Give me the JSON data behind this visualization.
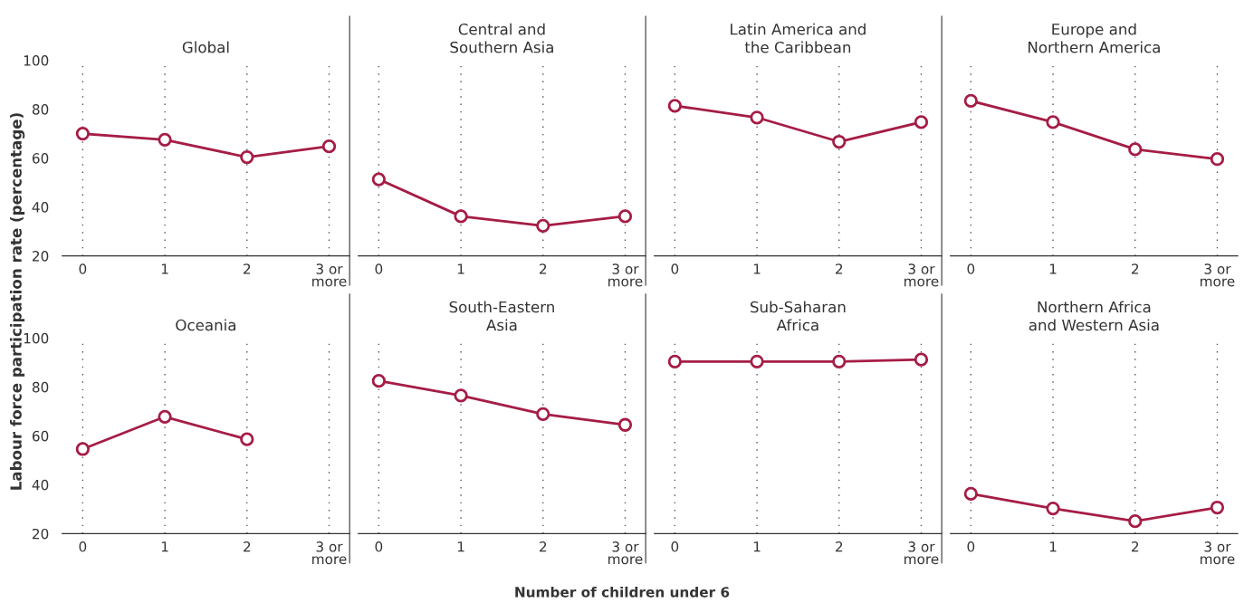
{
  "chart_data": [
    {
      "type": "line",
      "title": "Global",
      "ylabel": "Labour force participation rate (percentage)",
      "categories": [
        "0",
        "1",
        "2",
        "3 or\nmore"
      ],
      "series": [
        {
          "color": "#a51d45",
          "values": [
            70,
            67.5,
            60.4,
            64.8
          ]
        }
      ],
      "ylim": [
        20,
        100
      ],
      "yticks": [
        20,
        40,
        60,
        80,
        100
      ],
      "grid": "x",
      "marker": "circle"
    },
    {
      "type": "line",
      "title": "Central and\nSouthern Asia",
      "categories": [
        "0",
        "1",
        "2",
        "3 or\nmore"
      ],
      "series": [
        {
          "color": "#a51d45",
          "values": [
            51.3,
            36.2,
            32.3,
            36.2
          ]
        }
      ],
      "ylim": [
        20,
        100
      ],
      "yticks": [
        20,
        40,
        60,
        80,
        100
      ],
      "tick_labels": "x",
      "grid": "x",
      "marker": "circle"
    },
    {
      "type": "line",
      "title": "Latin America and\nthe Caribbean",
      "categories": [
        "0",
        "1",
        "2",
        "3 or\nmore"
      ],
      "series": [
        {
          "color": "#a51d45",
          "values": [
            81.4,
            76.6,
            66.7,
            74.7
          ]
        }
      ],
      "ylim": [
        20,
        100
      ],
      "yticks": [
        20,
        40,
        60,
        80,
        100
      ],
      "tick_labels": "x",
      "grid": "x",
      "marker": "circle"
    },
    {
      "type": "line",
      "title": "Europe and\nNorthern America",
      "categories": [
        "0",
        "1",
        "2",
        "3 or\nmore"
      ],
      "series": [
        {
          "color": "#a51d45",
          "values": [
            83.4,
            74.7,
            63.6,
            59.6
          ]
        }
      ],
      "ylim": [
        20,
        100
      ],
      "yticks": [
        20,
        40,
        60,
        80,
        100
      ],
      "tick_labels": "x",
      "grid": "x",
      "marker": "circle"
    },
    {
      "type": "line",
      "title": "Oceania",
      "categories": [
        "0",
        "1",
        "2",
        "3 or\nmore"
      ],
      "series": [
        {
          "color": "#a51d45",
          "values": [
            54.6,
            67.8,
            58.6,
            null
          ]
        }
      ],
      "ylim": [
        20,
        100
      ],
      "yticks": [
        20,
        40,
        60,
        80,
        100
      ],
      "grid": "x",
      "marker": "circle"
    },
    {
      "type": "line",
      "title": "South-Eastern\nAsia",
      "xlabel": "Number of children under 6",
      "categories": [
        "0",
        "1",
        "2",
        "3 or\nmore"
      ],
      "series": [
        {
          "color": "#a51d45",
          "values": [
            82.5,
            76.5,
            68.9,
            64.5
          ]
        }
      ],
      "ylim": [
        20,
        100
      ],
      "yticks": [
        20,
        40,
        60,
        80,
        100
      ],
      "tick_labels": "x",
      "grid": "x",
      "marker": "circle"
    },
    {
      "type": "line",
      "title": "Sub-Saharan\nAfrica",
      "categories": [
        "0",
        "1",
        "2",
        "3 or\nmore"
      ],
      "series": [
        {
          "color": "#a51d45",
          "values": [
            90.4,
            90.4,
            90.4,
            91.2
          ]
        }
      ],
      "ylim": [
        20,
        100
      ],
      "yticks": [
        20,
        40,
        60,
        80,
        100
      ],
      "tick_labels": "x",
      "grid": "x",
      "marker": "circle"
    },
    {
      "type": "line",
      "title": "Northern Africa\nand Western Asia",
      "categories": [
        "0",
        "1",
        "2",
        "3 or\nmore"
      ],
      "series": [
        {
          "color": "#a51d45",
          "values": [
            36.3,
            30.3,
            25.1,
            30.7
          ]
        }
      ],
      "ylim": [
        20,
        100
      ],
      "yticks": [
        20,
        40,
        60,
        80,
        100
      ],
      "tick_labels": "x",
      "grid": "x",
      "marker": "circle"
    }
  ]
}
